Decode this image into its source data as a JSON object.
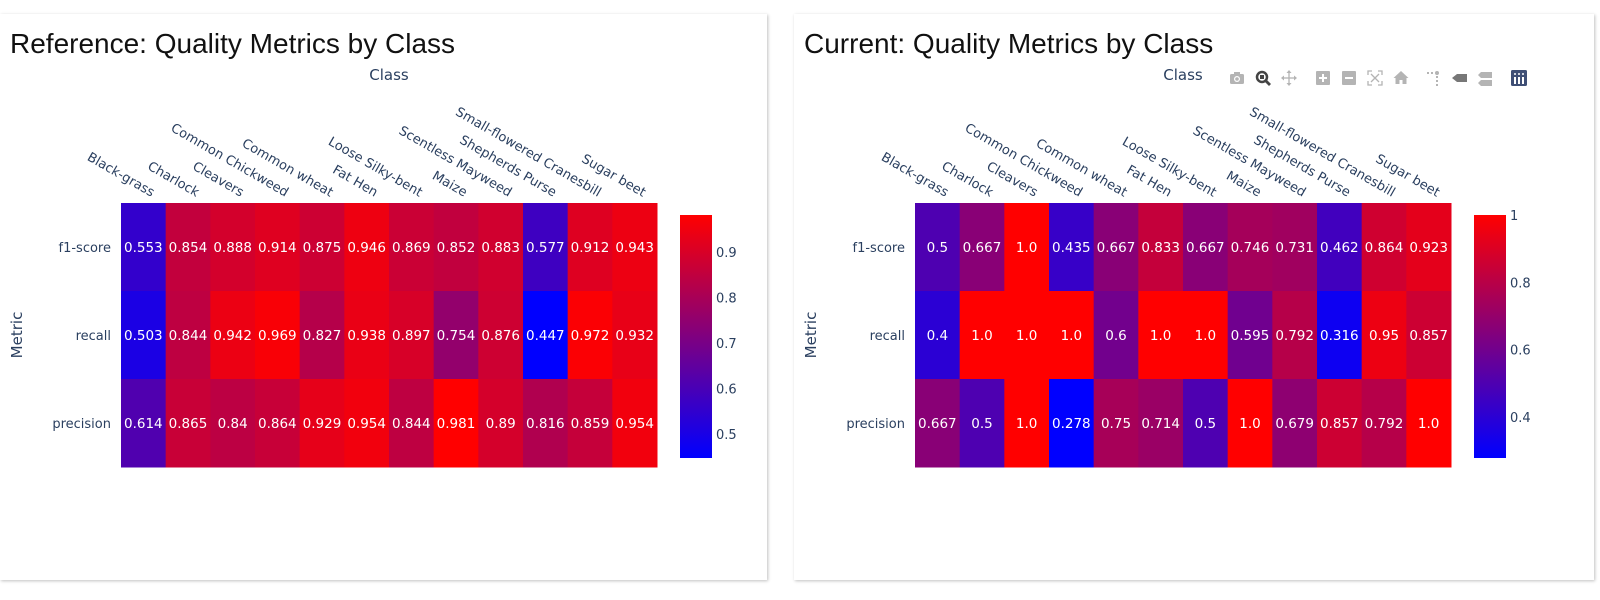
{
  "panels": [
    {
      "title": "Reference: Quality Metrics by Class"
    },
    {
      "title": "Current: Quality Metrics by Class",
      "toolbar": [
        {
          "icon": "camera-icon",
          "label": "Download plot as a png"
        },
        {
          "icon": "zoom-icon",
          "label": "Zoom"
        },
        {
          "icon": "pan-icon",
          "label": "Pan"
        },
        {
          "icon": "zoom-in-icon",
          "label": "Zoom in"
        },
        {
          "icon": "zoom-out-icon",
          "label": "Zoom out"
        },
        {
          "icon": "autoscale-icon",
          "label": "Autoscale"
        },
        {
          "icon": "home-icon",
          "label": "Reset axes"
        },
        {
          "icon": "spike-lines-icon",
          "label": "Toggle Spike Lines"
        },
        {
          "icon": "hover-closest-icon",
          "label": "Show closest data on hover"
        },
        {
          "icon": "hover-compare-icon",
          "label": "Compare data on hover"
        },
        {
          "icon": "plotly-logo-icon",
          "label": "Produced with Plotly"
        }
      ]
    }
  ],
  "colors": {
    "low": "#0000ff",
    "high": "#ff0000",
    "axis_text": "#2a3f5f",
    "cell_text": "#ffffff",
    "toolbar_icon": "#b4b4b4",
    "toolbar_active": "#444444",
    "plotly_logo": "#3f4f75"
  },
  "chart_data": [
    {
      "type": "heatmap",
      "title": "Reference: Quality Metrics by Class",
      "xlabel": "Class",
      "ylabel": "Metric",
      "x": [
        "Black-grass",
        "Charlock",
        "Cleavers",
        "Common Chickweed",
        "Common wheat",
        "Fat Hen",
        "Loose Silky-bent",
        "Maize",
        "Scentless Mayweed",
        "Shepherds Purse",
        "Small-flowered Cranesbill",
        "Sugar beet"
      ],
      "y": [
        "f1-score",
        "recall",
        "precision"
      ],
      "z": [
        [
          0.553,
          0.854,
          0.888,
          0.914,
          0.875,
          0.946,
          0.869,
          0.852,
          0.883,
          0.577,
          0.912,
          0.943
        ],
        [
          0.503,
          0.844,
          0.942,
          0.969,
          0.827,
          0.938,
          0.897,
          0.754,
          0.876,
          0.447,
          0.972,
          0.932
        ],
        [
          0.614,
          0.865,
          0.84,
          0.864,
          0.929,
          0.954,
          0.844,
          0.981,
          0.89,
          0.816,
          0.859,
          0.954
        ]
      ],
      "text": [
        [
          "0.553",
          "0.854",
          "0.888",
          "0.914",
          "0.875",
          "0.946",
          "0.869",
          "0.852",
          "0.883",
          "0.577",
          "0.912",
          "0.943"
        ],
        [
          "0.503",
          "0.844",
          "0.942",
          "0.969",
          "0.827",
          "0.938",
          "0.897",
          "0.754",
          "0.876",
          "0.447",
          "0.972",
          "0.932"
        ],
        [
          "0.614",
          "0.865",
          "0.84",
          "0.864",
          "0.929",
          "0.954",
          "0.844",
          "0.981",
          "0.89",
          "0.816",
          "0.859",
          "0.954"
        ]
      ],
      "colorscale": [
        "#0000ff",
        "#ff0000"
      ],
      "zrange": [
        0.447,
        0.981
      ],
      "colorbar_ticks": [
        0.5,
        0.6,
        0.7,
        0.8,
        0.9
      ],
      "colorbar_ticklabels": [
        "0.5",
        "0.6",
        "0.7",
        "0.8",
        "0.9"
      ]
    },
    {
      "type": "heatmap",
      "title": "Current: Quality Metrics by Class",
      "xlabel": "Class",
      "ylabel": "Metric",
      "x": [
        "Black-grass",
        "Charlock",
        "Cleavers",
        "Common Chickweed",
        "Common wheat",
        "Fat Hen",
        "Loose Silky-bent",
        "Maize",
        "Scentless Mayweed",
        "Shepherds Purse",
        "Small-flowered Cranesbill",
        "Sugar beet"
      ],
      "y": [
        "f1-score",
        "recall",
        "precision"
      ],
      "z": [
        [
          0.5,
          0.667,
          1.0,
          0.435,
          0.667,
          0.833,
          0.667,
          0.746,
          0.731,
          0.462,
          0.864,
          0.923
        ],
        [
          0.4,
          1.0,
          1.0,
          1.0,
          0.6,
          1.0,
          1.0,
          0.595,
          0.792,
          0.316,
          0.95,
          0.857
        ],
        [
          0.667,
          0.5,
          1.0,
          0.278,
          0.75,
          0.714,
          0.5,
          1.0,
          0.679,
          0.857,
          0.792,
          1.0
        ]
      ],
      "text": [
        [
          "0.5",
          "0.667",
          "1.0",
          "0.435",
          "0.667",
          "0.833",
          "0.667",
          "0.746",
          "0.731",
          "0.462",
          "0.864",
          "0.923"
        ],
        [
          "0.4",
          "1.0",
          "1.0",
          "1.0",
          "0.6",
          "1.0",
          "1.0",
          "0.595",
          "0.792",
          "0.316",
          "0.95",
          "0.857"
        ],
        [
          "0.667",
          "0.5",
          "1.0",
          "0.278",
          "0.75",
          "0.714",
          "0.5",
          "1.0",
          "0.679",
          "0.857",
          "0.792",
          "1.0"
        ]
      ],
      "colorscale": [
        "#0000ff",
        "#ff0000"
      ],
      "zrange": [
        0.278,
        1.0
      ],
      "colorbar_ticks": [
        0.4,
        0.6,
        0.8,
        1.0
      ],
      "colorbar_ticklabels": [
        "0.4",
        "0.6",
        "0.8",
        "1"
      ]
    }
  ]
}
